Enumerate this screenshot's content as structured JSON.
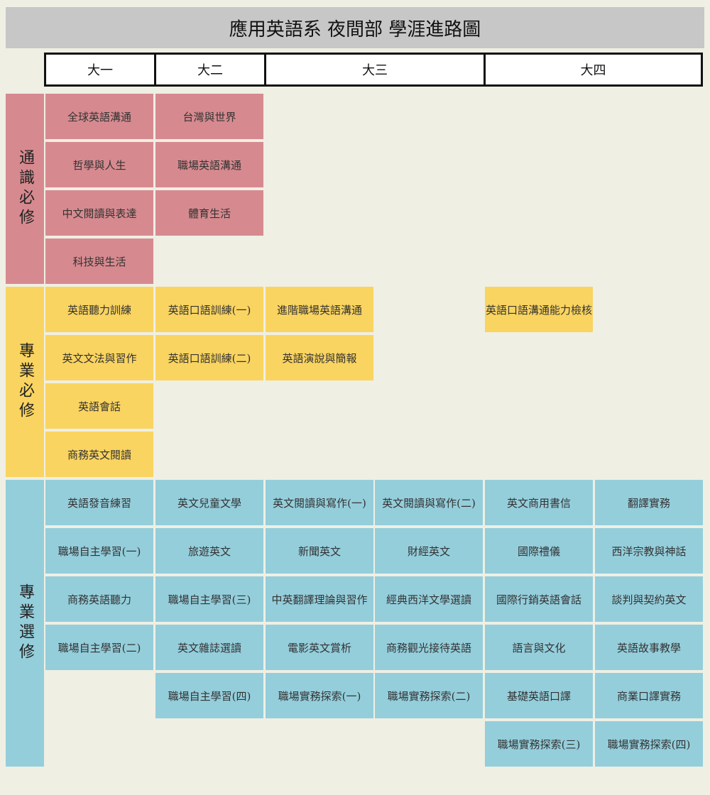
{
  "title": "應用英語系 夜間部 學涯進路圖",
  "years": [
    "大一",
    "大二",
    "大三",
    "大四"
  ],
  "sections": {
    "general": "通識必修",
    "major_required": "專業必修",
    "major_elective": "專業選修"
  },
  "general": {
    "y1": [
      "全球英語溝通",
      "哲學與人生",
      "中文閱讀與表達",
      "科技與生活"
    ],
    "y2": [
      "台灣與世界",
      "職場英語溝通",
      "體育生活"
    ]
  },
  "required": {
    "y1": [
      "英語聽力訓練",
      "英文文法與習作",
      "英語會話",
      "商務英文閱讀"
    ],
    "y2": [
      "英語口語訓練(一)",
      "英語口語訓練(二)"
    ],
    "y3a": [
      "進階職場英語溝通",
      "英語演說與簡報"
    ],
    "y4a": [
      "英語口語溝通能力檢核"
    ]
  },
  "elective": {
    "y1": [
      "英語發音練習",
      "職場自主學習(一)",
      "商務英語聽力",
      "職場自主學習(二)"
    ],
    "y2": [
      "英文兒童文學",
      "旅遊英文",
      "職場自主學習(三)",
      "英文雜誌選讀",
      "職場自主學習(四)"
    ],
    "y3a": [
      "英文閱讀與寫作(一)",
      "新聞英文",
      "中英翻譯理論與習作",
      "電影英文賞析",
      "職場實務探索(一)"
    ],
    "y3b": [
      "英文閱讀與寫作(二)",
      "財經英文",
      "經典西洋文學選讀",
      "商務觀光接待英語",
      "職場實務探索(二)"
    ],
    "y4a": [
      "英文商用書信",
      "國際禮儀",
      "國際行銷英語會話",
      "語言與文化",
      "基礎英語口譯",
      "職場實務探索(三)"
    ],
    "y4b": [
      "翻譯實務",
      "西洋宗教與神話",
      "談判與契約英文",
      "英語故事教學",
      "商業口譯實務",
      "職場實務探索(四)"
    ]
  }
}
